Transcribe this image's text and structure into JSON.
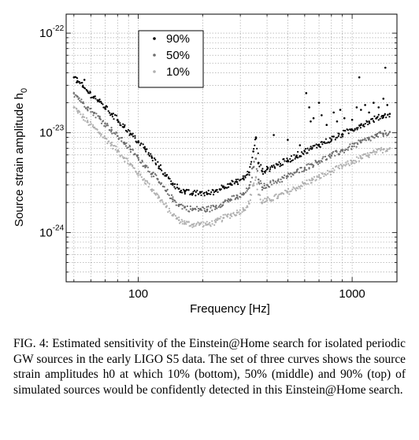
{
  "chart_data": {
    "type": "scatter",
    "xscale": "log",
    "yscale": "log",
    "xlim": [
      46,
      1620
    ],
    "ylim": [
      3.2e-25,
      1.55e-22
    ],
    "grid": true,
    "xlabel": "Frequency [Hz]",
    "ylabel": "Source strain amplitude h",
    "ylabel_sub": "0",
    "x_ticks": [
      {
        "value": 100,
        "label": "100"
      },
      {
        "value": 1000,
        "label": "1000"
      }
    ],
    "y_ticks": [
      {
        "value": 1e-22,
        "base": "10",
        "exp": "-22"
      },
      {
        "value": 1e-23,
        "base": "10",
        "exp": "-23"
      },
      {
        "value": 1e-24,
        "base": "10",
        "exp": "-24"
      }
    ],
    "legend_position": "top-left",
    "series": [
      {
        "name": "90%",
        "color": "#000000",
        "points": [
          [
            50,
            3.6e-23
          ],
          [
            52,
            3.3e-23
          ],
          [
            55,
            2.9e-23
          ],
          [
            58,
            2.6e-23
          ],
          [
            62,
            2.3e-23
          ],
          [
            66,
            2.05e-23
          ],
          [
            70,
            1.8e-23
          ],
          [
            75,
            1.55e-23
          ],
          [
            80,
            1.35e-23
          ],
          [
            86,
            1.15e-23
          ],
          [
            92,
            9.8e-24
          ],
          [
            100,
            8.2e-24
          ],
          [
            108,
            6.8e-24
          ],
          [
            116,
            5.6e-24
          ],
          [
            125,
            4.6e-24
          ],
          [
            135,
            3.7e-24
          ],
          [
            145,
            3.1e-24
          ],
          [
            155,
            2.75e-24
          ],
          [
            165,
            2.55e-24
          ],
          [
            180,
            2.45e-24
          ],
          [
            195,
            2.5e-24
          ],
          [
            210,
            2.45e-24
          ],
          [
            230,
            2.6e-24
          ],
          [
            250,
            2.9e-24
          ],
          [
            270,
            3.1e-24
          ],
          [
            290,
            3.2e-24
          ],
          [
            310,
            3.5e-24
          ],
          [
            330,
            4e-24
          ],
          [
            345,
            6.5e-24
          ],
          [
            355,
            9e-24
          ],
          [
            365,
            5e-24
          ],
          [
            380,
            4.1e-24
          ],
          [
            400,
            4.3e-24
          ],
          [
            450,
            4.8e-24
          ],
          [
            500,
            5.3e-24
          ],
          [
            550,
            5.9e-24
          ],
          [
            600,
            6.5e-24
          ],
          [
            650,
            7e-24
          ],
          [
            700,
            7.6e-24
          ],
          [
            800,
            8.6e-24
          ],
          [
            900,
            9.7e-24
          ],
          [
            1000,
            1.08e-23
          ],
          [
            1100,
            1.2e-23
          ],
          [
            1200,
            1.3e-23
          ],
          [
            1300,
            1.4e-23
          ],
          [
            1400,
            1.48e-23
          ],
          [
            1500,
            1.55e-23
          ]
        ]
      },
      {
        "name": "50%",
        "color": "#6e6e6e",
        "points": [
          [
            50,
            2.5e-23
          ],
          [
            52,
            2.3e-23
          ],
          [
            55,
            2e-23
          ],
          [
            58,
            1.8e-23
          ],
          [
            62,
            1.58e-23
          ],
          [
            66,
            1.4e-23
          ],
          [
            70,
            1.24e-23
          ],
          [
            75,
            1.07e-23
          ],
          [
            80,
            9.3e-24
          ],
          [
            86,
            8e-24
          ],
          [
            92,
            6.8e-24
          ],
          [
            100,
            5.6e-24
          ],
          [
            108,
            4.7e-24
          ],
          [
            116,
            3.9e-24
          ],
          [
            125,
            3.2e-24
          ],
          [
            135,
            2.6e-24
          ],
          [
            145,
            2.15e-24
          ],
          [
            155,
            1.9e-24
          ],
          [
            165,
            1.78e-24
          ],
          [
            180,
            1.7e-24
          ],
          [
            195,
            1.72e-24
          ],
          [
            210,
            1.7e-24
          ],
          [
            230,
            1.8e-24
          ],
          [
            250,
            2e-24
          ],
          [
            270,
            2.15e-24
          ],
          [
            290,
            2.25e-24
          ],
          [
            310,
            2.4e-24
          ],
          [
            330,
            2.8e-24
          ],
          [
            345,
            4.5e-24
          ],
          [
            355,
            5.5e-24
          ],
          [
            365,
            3.4e-24
          ],
          [
            380,
            2.85e-24
          ],
          [
            400,
            3e-24
          ],
          [
            450,
            3.3e-24
          ],
          [
            500,
            3.65e-24
          ],
          [
            550,
            4.05e-24
          ],
          [
            600,
            4.45e-24
          ],
          [
            650,
            4.8e-24
          ],
          [
            700,
            5.2e-24
          ],
          [
            800,
            5.9e-24
          ],
          [
            900,
            6.6e-24
          ],
          [
            1000,
            7.3e-24
          ],
          [
            1100,
            8e-24
          ],
          [
            1200,
            8.7e-24
          ],
          [
            1300,
            9.3e-24
          ],
          [
            1400,
            9.8e-24
          ],
          [
            1500,
            1.02e-23
          ]
        ]
      },
      {
        "name": "10%",
        "color": "#b0b0b0",
        "points": [
          [
            50,
            1.8e-23
          ],
          [
            52,
            1.65e-23
          ],
          [
            55,
            1.45e-23
          ],
          [
            58,
            1.28e-23
          ],
          [
            62,
            1.13e-23
          ],
          [
            66,
            1e-23
          ],
          [
            70,
            8.8e-24
          ],
          [
            75,
            7.6e-24
          ],
          [
            80,
            6.6e-24
          ],
          [
            86,
            5.6e-24
          ],
          [
            92,
            4.8e-24
          ],
          [
            100,
            3.9e-24
          ],
          [
            108,
            3.3e-24
          ],
          [
            116,
            2.7e-24
          ],
          [
            125,
            2.25e-24
          ],
          [
            135,
            1.8e-24
          ],
          [
            145,
            1.5e-24
          ],
          [
            155,
            1.33e-24
          ],
          [
            165,
            1.25e-24
          ],
          [
            180,
            1.2e-24
          ],
          [
            195,
            1.22e-24
          ],
          [
            210,
            1.2e-24
          ],
          [
            230,
            1.27e-24
          ],
          [
            250,
            1.4e-24
          ],
          [
            270,
            1.5e-24
          ],
          [
            290,
            1.58e-24
          ],
          [
            310,
            1.7e-24
          ],
          [
            330,
            1.95e-24
          ],
          [
            345,
            3e-24
          ],
          [
            355,
            3.6e-24
          ],
          [
            365,
            2.4e-24
          ],
          [
            380,
            2e-24
          ],
          [
            400,
            2.1e-24
          ],
          [
            450,
            2.3e-24
          ],
          [
            500,
            2.55e-24
          ],
          [
            550,
            2.8e-24
          ],
          [
            600,
            3.1e-24
          ],
          [
            650,
            3.35e-24
          ],
          [
            700,
            3.6e-24
          ],
          [
            800,
            4.1e-24
          ],
          [
            900,
            4.6e-24
          ],
          [
            1000,
            5.1e-24
          ],
          [
            1100,
            5.6e-24
          ],
          [
            1200,
            6e-24
          ],
          [
            1300,
            6.4e-24
          ],
          [
            1400,
            6.8e-24
          ],
          [
            1500,
            7e-24
          ]
        ]
      }
    ],
    "outliers_90": [
      [
        56,
        3.4e-23
      ],
      [
        430,
        9.5e-24
      ],
      [
        500,
        8.5e-24
      ],
      [
        570,
        7.5e-24
      ],
      [
        610,
        2.5e-23
      ],
      [
        630,
        1.8e-23
      ],
      [
        640,
        1.3e-23
      ],
      [
        660,
        1.4e-23
      ],
      [
        700,
        2e-23
      ],
      [
        720,
        1.5e-23
      ],
      [
        760,
        1.2e-23
      ],
      [
        820,
        1.6e-23
      ],
      [
        850,
        1.3e-23
      ],
      [
        880,
        1.7e-23
      ],
      [
        920,
        1.4e-23
      ],
      [
        1000,
        1.35e-23
      ],
      [
        1050,
        1.8e-23
      ],
      [
        1080,
        3.6e-23
      ],
      [
        1100,
        1.7e-23
      ],
      [
        1150,
        1.9e-23
      ],
      [
        1200,
        1.6e-23
      ],
      [
        1260,
        2e-23
      ],
      [
        1330,
        1.8e-23
      ],
      [
        1400,
        2.2e-23
      ],
      [
        1430,
        4.5e-23
      ],
      [
        1460,
        1.9e-23
      ]
    ]
  },
  "caption": {
    "text": "FIG. 4: Estimated sensitivity of the Einstein@Home search for isolated periodic GW sources in the early LIGO S5 data. The set of three curves shows the source strain amplitudes h0 at which 10% (bottom), 50% (middle) and 90% (top) of simulated sources would be confidently detected in this Einstein@Home search."
  }
}
